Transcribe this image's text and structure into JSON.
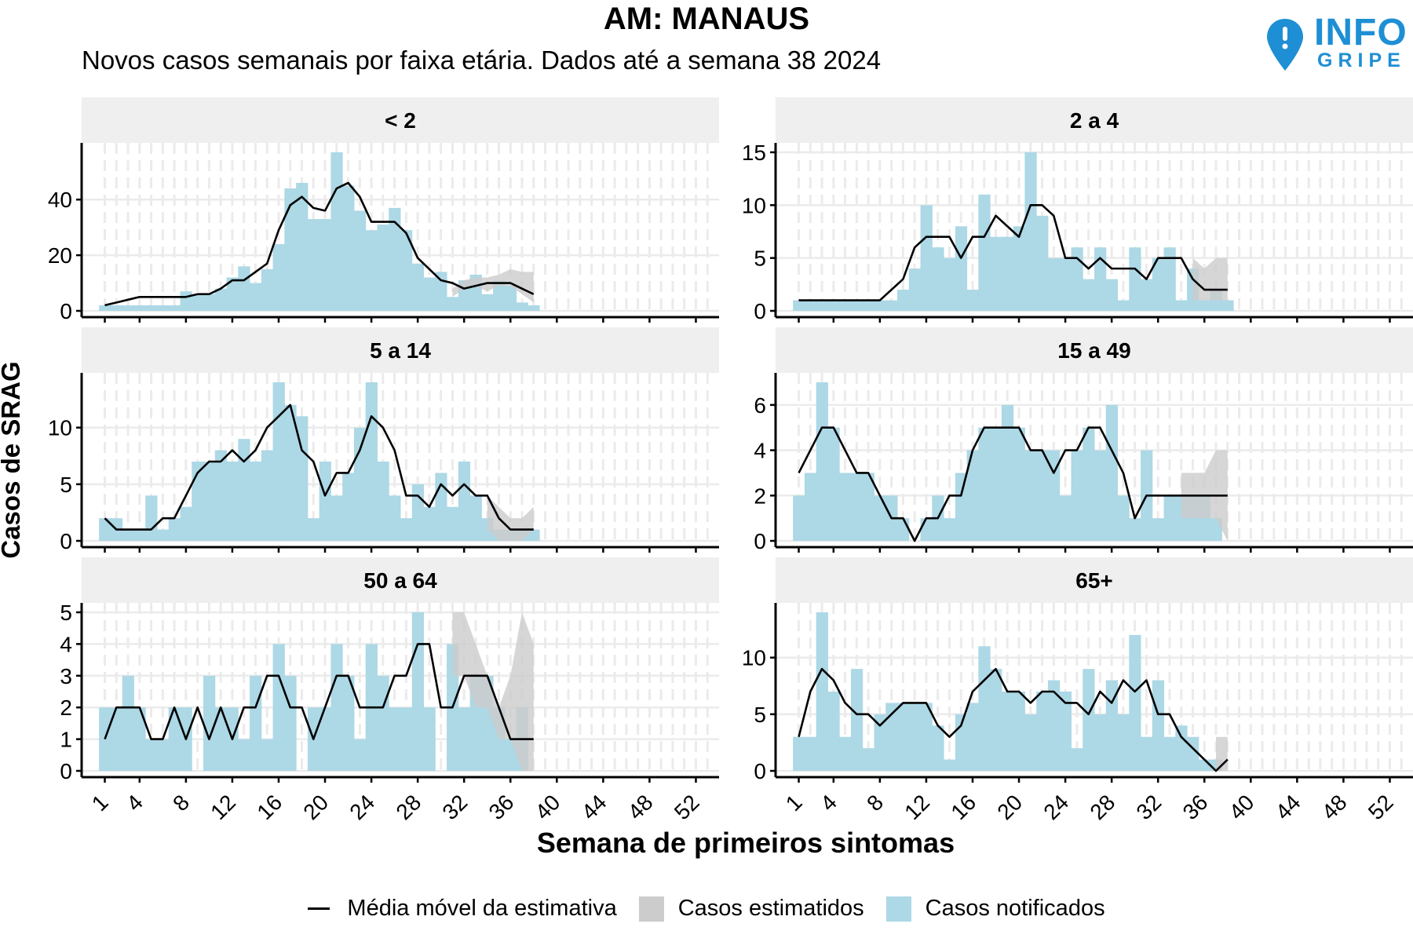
{
  "title": "AM: MANAUS",
  "subtitle": "Novos casos semanais por faixa etária. Dados até a semana 38 2024",
  "logo": {
    "word": "INFO",
    "sub": "GRIPE",
    "icon": "map-pin-icon",
    "color": "#1e8fd4"
  },
  "colors": {
    "notified": "#add8e6",
    "estimated": "#cccccc",
    "line": "#000000",
    "strip": "#efefef",
    "grid": "#ebebeb"
  },
  "legend": {
    "line_label": "Média móvel da estimativa",
    "estimated_label": "Casos estimatidos",
    "notified_label": "Casos notificados"
  },
  "chart_data": {
    "type": "bar",
    "xlabel": "Semana de primeiros sintomas",
    "ylabel": "Casos de SRAG",
    "xlim": [
      -1,
      54
    ],
    "x_ticks": [
      1,
      4,
      8,
      12,
      16,
      20,
      24,
      28,
      32,
      36,
      40,
      44,
      48,
      52
    ],
    "legend_position": "bottom",
    "panels": [
      {
        "name": "< 2",
        "ylim": [
          0,
          57
        ],
        "y_ticks": [
          0,
          20,
          40
        ],
        "notified": [
          2,
          2,
          2,
          2,
          2,
          2,
          2,
          7,
          6,
          6,
          8,
          12,
          16,
          10,
          15,
          24,
          44,
          46,
          33,
          33,
          57,
          45,
          36,
          29,
          31,
          37,
          29,
          17,
          12,
          14,
          5,
          11,
          13,
          6,
          11,
          9,
          3,
          2
        ],
        "est_lower": [
          null,
          null,
          null,
          null,
          null,
          null,
          null,
          null,
          null,
          null,
          null,
          null,
          null,
          null,
          null,
          null,
          null,
          null,
          null,
          null,
          null,
          null,
          null,
          null,
          null,
          null,
          null,
          null,
          null,
          null,
          5,
          8,
          9,
          7,
          9,
          9,
          6,
          3
        ],
        "est_upper": [
          null,
          null,
          null,
          null,
          null,
          null,
          null,
          null,
          null,
          null,
          null,
          null,
          null,
          null,
          null,
          null,
          null,
          null,
          null,
          null,
          null,
          null,
          null,
          null,
          null,
          null,
          null,
          null,
          null,
          null,
          8,
          11,
          12,
          12,
          13,
          15,
          14,
          14
        ],
        "moving_avg": [
          2,
          3,
          4,
          5,
          5,
          5,
          5,
          5,
          6,
          6,
          8,
          11,
          11,
          14,
          17,
          29,
          38,
          41,
          37,
          36,
          44,
          46,
          41,
          32,
          32,
          32,
          28,
          19,
          15,
          11,
          10,
          8,
          9,
          10,
          10,
          10,
          8,
          6
        ]
      },
      {
        "name": "2 a 4",
        "ylim": [
          0,
          15
        ],
        "y_ticks": [
          0,
          5,
          10,
          15
        ],
        "notified": [
          1,
          1,
          1,
          1,
          1,
          1,
          1,
          1,
          1,
          2,
          4,
          10,
          6,
          5,
          8,
          2,
          11,
          7,
          7,
          8,
          15,
          9,
          5,
          5,
          6,
          3,
          6,
          3,
          1,
          6,
          3,
          5,
          6,
          1,
          4,
          1,
          2,
          1
        ],
        "est_lower": [
          null,
          null,
          null,
          null,
          null,
          null,
          null,
          null,
          null,
          null,
          null,
          null,
          null,
          null,
          null,
          null,
          null,
          null,
          null,
          null,
          null,
          null,
          null,
          null,
          null,
          null,
          null,
          null,
          null,
          null,
          null,
          null,
          null,
          null,
          1,
          1,
          1,
          1
        ],
        "est_upper": [
          null,
          null,
          null,
          null,
          null,
          null,
          null,
          null,
          null,
          null,
          null,
          null,
          null,
          null,
          null,
          null,
          null,
          null,
          null,
          null,
          null,
          null,
          null,
          null,
          null,
          null,
          null,
          null,
          null,
          null,
          null,
          null,
          null,
          null,
          5,
          4,
          5,
          5
        ],
        "moving_avg": [
          1,
          1,
          1,
          1,
          1,
          1,
          1,
          1,
          2,
          3,
          6,
          7,
          7,
          7,
          5,
          7,
          7,
          9,
          8,
          7,
          10,
          10,
          9,
          5,
          5,
          4,
          5,
          4,
          4,
          4,
          3,
          5,
          5,
          5,
          3,
          2,
          2,
          2
        ]
      },
      {
        "name": "5 a 14",
        "ylim": [
          0,
          14
        ],
        "y_ticks": [
          0,
          5,
          10
        ],
        "notified": [
          2,
          2,
          1,
          1,
          4,
          1,
          2,
          3,
          7,
          7,
          8,
          7,
          9,
          7,
          8,
          14,
          12,
          11,
          2,
          7,
          4,
          6,
          10,
          14,
          7,
          4,
          2,
          5,
          3,
          6,
          3,
          7,
          4,
          2,
          1,
          1,
          1,
          1
        ],
        "est_lower": [
          null,
          null,
          null,
          null,
          null,
          null,
          null,
          null,
          null,
          null,
          null,
          null,
          null,
          null,
          null,
          null,
          null,
          null,
          null,
          null,
          null,
          null,
          null,
          null,
          null,
          null,
          null,
          null,
          null,
          null,
          null,
          null,
          null,
          1,
          0,
          0,
          0,
          1
        ],
        "est_upper": [
          null,
          null,
          null,
          null,
          null,
          null,
          null,
          null,
          null,
          null,
          null,
          null,
          null,
          null,
          null,
          null,
          null,
          null,
          null,
          null,
          null,
          null,
          null,
          null,
          null,
          null,
          null,
          null,
          null,
          null,
          null,
          null,
          null,
          4,
          3,
          2,
          2,
          3
        ],
        "moving_avg": [
          2,
          1,
          1,
          1,
          1,
          2,
          2,
          4,
          6,
          7,
          7,
          8,
          7,
          8,
          10,
          11,
          12,
          8,
          7,
          4,
          6,
          6,
          8,
          11,
          10,
          8,
          4,
          4,
          3,
          5,
          4,
          5,
          4,
          4,
          2,
          1,
          1,
          1
        ]
      },
      {
        "name": "15 a 49",
        "ylim": [
          0,
          7
        ],
        "y_ticks": [
          0,
          2,
          4,
          6
        ],
        "notified": [
          2,
          3,
          7,
          5,
          3,
          3,
          3,
          2,
          2,
          1,
          0,
          1,
          2,
          1,
          3,
          4,
          5,
          5,
          6,
          5,
          4,
          4,
          4,
          2,
          4,
          5,
          4,
          6,
          2,
          1,
          4,
          1,
          2,
          2,
          2,
          2,
          1,
          0
        ],
        "est_lower": [
          null,
          null,
          null,
          null,
          null,
          null,
          null,
          null,
          null,
          null,
          null,
          null,
          null,
          null,
          null,
          null,
          null,
          null,
          null,
          null,
          null,
          null,
          null,
          null,
          null,
          null,
          null,
          null,
          null,
          null,
          null,
          null,
          null,
          1,
          1,
          1,
          1,
          0
        ],
        "est_upper": [
          null,
          null,
          null,
          null,
          null,
          null,
          null,
          null,
          null,
          null,
          null,
          null,
          null,
          null,
          null,
          null,
          null,
          null,
          null,
          null,
          null,
          null,
          null,
          null,
          null,
          null,
          null,
          null,
          null,
          null,
          null,
          null,
          null,
          3,
          3,
          3,
          4,
          4
        ],
        "moving_avg": [
          3,
          4,
          5,
          5,
          4,
          3,
          3,
          2,
          1,
          1,
          0,
          1,
          1,
          2,
          2,
          4,
          5,
          5,
          5,
          5,
          4,
          4,
          3,
          4,
          4,
          5,
          5,
          4,
          3,
          1,
          2,
          2,
          2,
          2,
          2,
          2,
          2,
          2
        ]
      },
      {
        "name": "50 a 64",
        "ylim": [
          0,
          5
        ],
        "y_ticks": [
          0,
          1,
          2,
          3,
          4,
          5
        ],
        "notified": [
          2,
          2,
          3,
          2,
          1,
          1,
          2,
          2,
          0,
          3,
          2,
          2,
          1,
          3,
          1,
          4,
          3,
          0,
          2,
          2,
          4,
          3,
          1,
          4,
          3,
          2,
          2,
          5,
          2,
          0,
          4,
          2,
          3,
          3,
          2,
          1,
          2,
          0
        ],
        "est_lower": [
          null,
          null,
          null,
          null,
          null,
          null,
          null,
          null,
          null,
          null,
          null,
          null,
          null,
          null,
          null,
          null,
          null,
          null,
          null,
          null,
          null,
          null,
          null,
          null,
          null,
          null,
          null,
          null,
          null,
          null,
          3,
          3,
          2,
          2,
          1,
          1,
          0,
          0
        ],
        "est_upper": [
          null,
          null,
          null,
          null,
          null,
          null,
          null,
          null,
          null,
          null,
          null,
          null,
          null,
          null,
          null,
          null,
          null,
          null,
          null,
          null,
          null,
          null,
          null,
          null,
          null,
          null,
          null,
          null,
          null,
          null,
          5,
          5,
          4,
          3,
          2,
          3,
          5,
          4
        ],
        "moving_avg": [
          1,
          2,
          2,
          2,
          1,
          1,
          2,
          1,
          2,
          1,
          2,
          1,
          2,
          2,
          3,
          3,
          2,
          2,
          1,
          2,
          3,
          3,
          2,
          2,
          2,
          3,
          3,
          4,
          4,
          2,
          2,
          3,
          3,
          3,
          2,
          1,
          1,
          1
        ]
      },
      {
        "name": "65+",
        "ylim": [
          0,
          14
        ],
        "y_ticks": [
          0,
          5,
          10
        ],
        "notified": [
          3,
          3,
          14,
          7,
          3,
          9,
          2,
          5,
          6,
          6,
          6,
          6,
          4,
          1,
          5,
          6,
          11,
          9,
          7,
          7,
          5,
          7,
          8,
          7,
          2,
          9,
          5,
          8,
          5,
          12,
          3,
          8,
          3,
          4,
          3,
          1,
          1,
          0
        ],
        "est_lower": [
          null,
          null,
          null,
          null,
          null,
          null,
          null,
          null,
          null,
          null,
          null,
          null,
          null,
          null,
          null,
          null,
          null,
          null,
          null,
          null,
          null,
          null,
          null,
          null,
          null,
          null,
          null,
          null,
          null,
          null,
          null,
          null,
          null,
          null,
          null,
          null,
          0,
          0
        ],
        "est_upper": [
          null,
          null,
          null,
          null,
          null,
          null,
          null,
          null,
          null,
          null,
          null,
          null,
          null,
          null,
          null,
          null,
          null,
          null,
          null,
          null,
          null,
          null,
          null,
          null,
          null,
          null,
          null,
          null,
          null,
          null,
          null,
          null,
          null,
          null,
          null,
          null,
          3,
          3
        ],
        "moving_avg": [
          3,
          7,
          9,
          8,
          6,
          5,
          5,
          4,
          5,
          6,
          6,
          6,
          4,
          3,
          4,
          7,
          8,
          9,
          7,
          7,
          6,
          7,
          7,
          6,
          6,
          5,
          7,
          6,
          8,
          7,
          8,
          5,
          5,
          3,
          2,
          1,
          0,
          1
        ]
      }
    ]
  }
}
